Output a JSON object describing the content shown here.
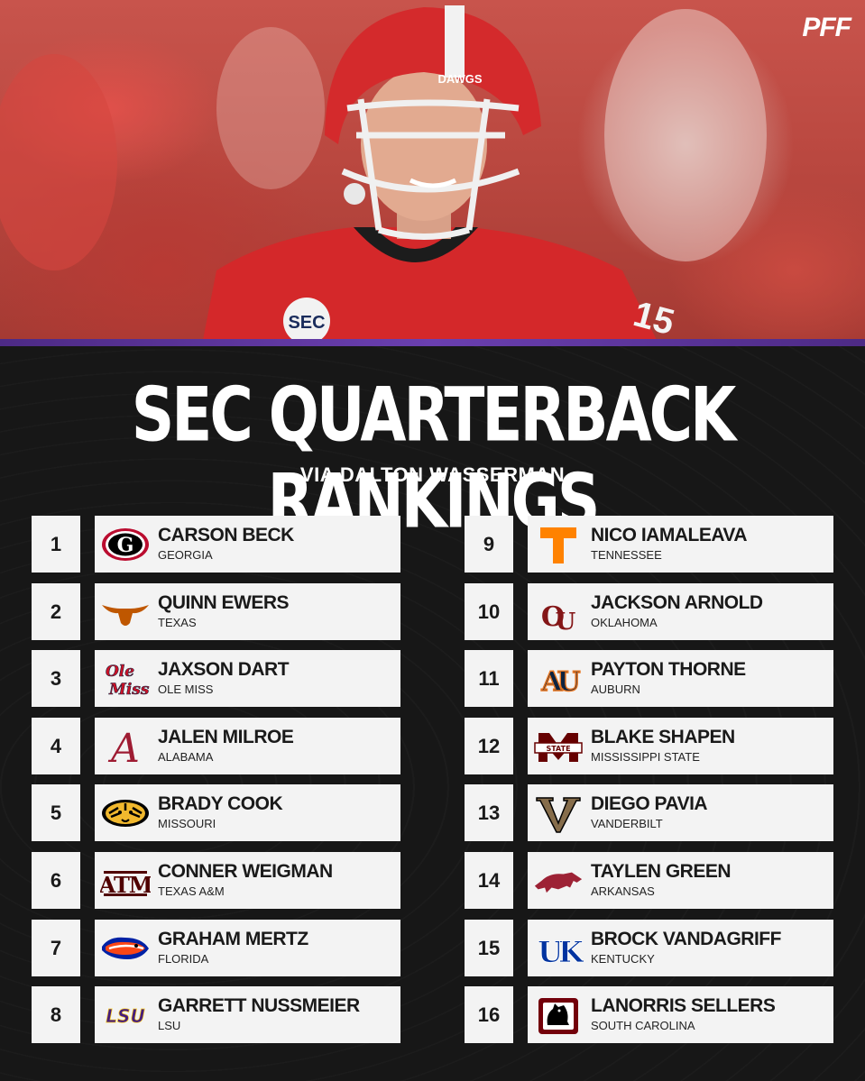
{
  "brand": "PFF",
  "title": "SEC QUARTERBACK RANKINGS",
  "subtitle": "VIA DALTON WASSERMAN",
  "photo": {
    "helmet_text": "DAWGS",
    "patch_text": "SEC",
    "jersey_number": "15"
  },
  "rankings": [
    {
      "rank": "1",
      "name": "CARSON BECK",
      "school": "GEORGIA",
      "logo": "georgia-g-icon",
      "logo_text": "G",
      "color": "#000000",
      "accent": "#BA0C2F"
    },
    {
      "rank": "2",
      "name": "QUINN EWERS",
      "school": "TEXAS",
      "logo": "longhorn-icon",
      "logo_text": "",
      "color": "#BF5700",
      "accent": "#BF5700"
    },
    {
      "rank": "3",
      "name": "JAXSON DART",
      "school": "OLE MISS",
      "logo": "ole-miss-script-icon",
      "logo_text": "Ole Miss",
      "color": "#CE1126",
      "accent": "#14213D"
    },
    {
      "rank": "4",
      "name": "JALEN MILROE",
      "school": "ALABAMA",
      "logo": "alabama-a-icon",
      "logo_text": "A",
      "color": "#9E1B32",
      "accent": "#9E1B32"
    },
    {
      "rank": "5",
      "name": "BRADY COOK",
      "school": "MISSOURI",
      "logo": "tiger-icon",
      "logo_text": "",
      "color": "#F1B82D",
      "accent": "#000000"
    },
    {
      "rank": "6",
      "name": "CONNER WEIGMAN",
      "school": "TEXAS A&M",
      "logo": "atm-icon",
      "logo_text": "ATM",
      "color": "#500000",
      "accent": "#500000"
    },
    {
      "rank": "7",
      "name": "GRAHAM MERTZ",
      "school": "FLORIDA",
      "logo": "gator-icon",
      "logo_text": "",
      "color": "#0021A5",
      "accent": "#FA4616"
    },
    {
      "rank": "8",
      "name": "GARRETT NUSSMEIER",
      "school": "LSU",
      "logo": "lsu-icon",
      "logo_text": "LSU",
      "color": "#461D7C",
      "accent": "#FDD023"
    },
    {
      "rank": "9",
      "name": "NICO IAMALEAVA",
      "school": "TENNESSEE",
      "logo": "tennessee-t-icon",
      "logo_text": "T",
      "color": "#FF8200",
      "accent": "#FF8200"
    },
    {
      "rank": "10",
      "name": "JACKSON ARNOLD",
      "school": "OKLAHOMA",
      "logo": "oklahoma-ou-icon",
      "logo_text": "OU",
      "color": "#841617",
      "accent": "#841617"
    },
    {
      "rank": "11",
      "name": "PAYTON THORNE",
      "school": "AUBURN",
      "logo": "auburn-au-icon",
      "logo_text": "AU",
      "color": "#0C2340",
      "accent": "#E87722"
    },
    {
      "rank": "12",
      "name": "BLAKE SHAPEN",
      "school": "MISSISSIPPI STATE",
      "logo": "miss-state-m-icon",
      "logo_text": "STATE",
      "color": "#660000",
      "accent": "#660000"
    },
    {
      "rank": "13",
      "name": "DIEGO PAVIA",
      "school": "VANDERBILT",
      "logo": "vanderbilt-v-icon",
      "logo_text": "V",
      "color": "#866D4B",
      "accent": "#000000"
    },
    {
      "rank": "14",
      "name": "TAYLEN GREEN",
      "school": "ARKANSAS",
      "logo": "razorback-icon",
      "logo_text": "",
      "color": "#9D2235",
      "accent": "#9D2235"
    },
    {
      "rank": "15",
      "name": "BROCK VANDAGRIFF",
      "school": "KENTUCKY",
      "logo": "kentucky-uk-icon",
      "logo_text": "UK",
      "color": "#0033A0",
      "accent": "#0033A0"
    },
    {
      "rank": "16",
      "name": "LANORRIS SELLERS",
      "school": "SOUTH CAROLINA",
      "logo": "gamecock-icon",
      "logo_text": "",
      "color": "#73000A",
      "accent": "#000000"
    }
  ]
}
